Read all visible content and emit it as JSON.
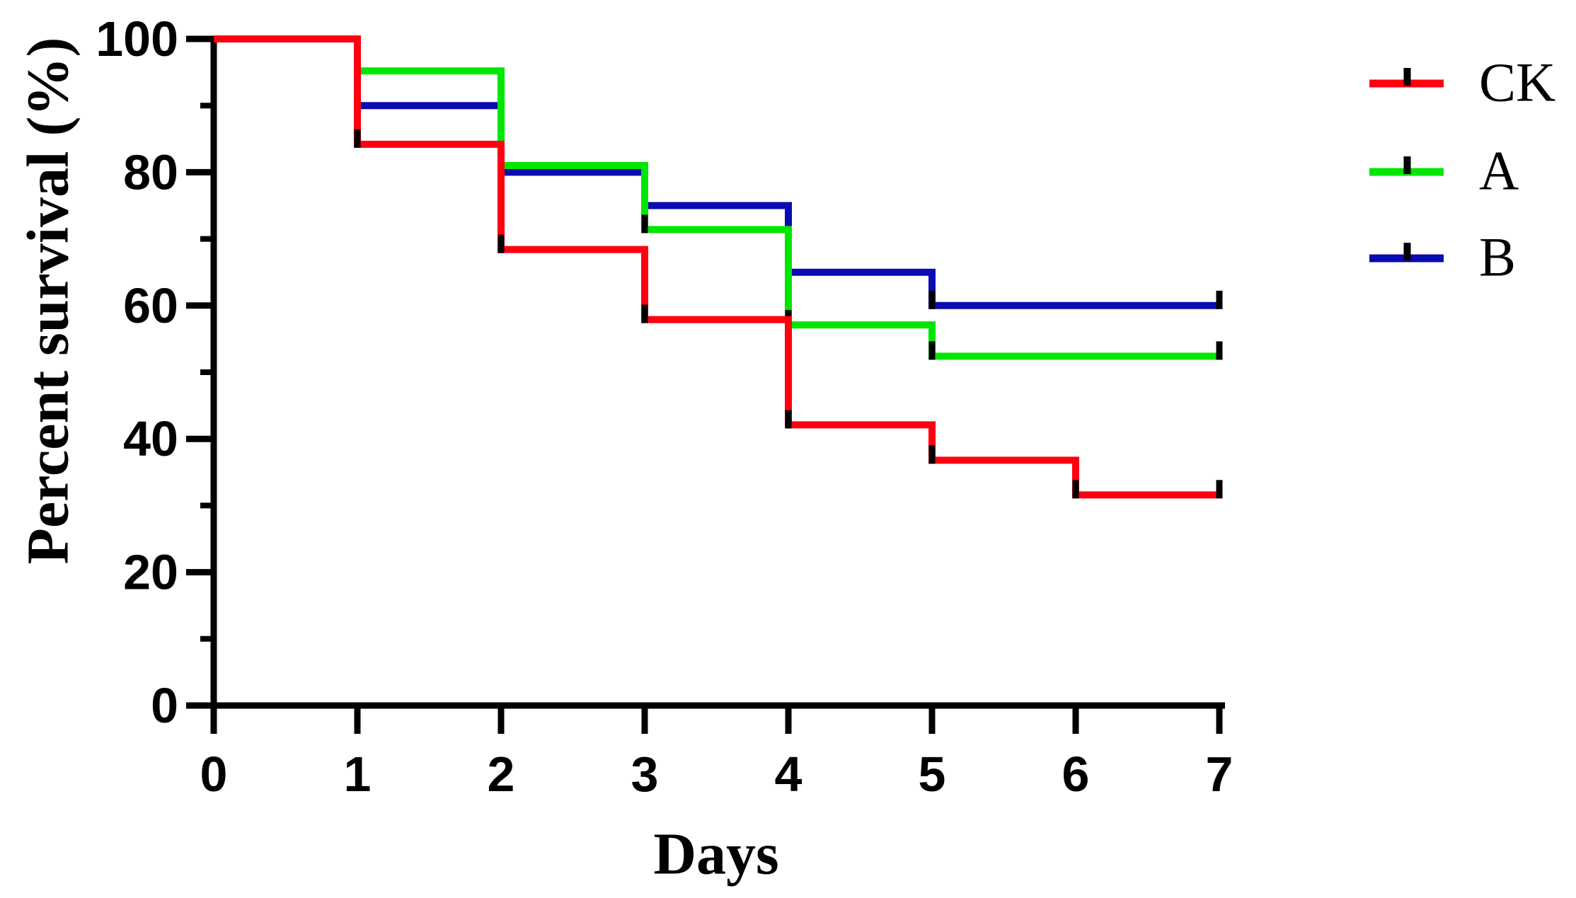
{
  "figure": {
    "background": "#ffffff",
    "axis_color": "#000000"
  },
  "chart_data": {
    "type": "line",
    "subtype": "step-survival",
    "title": "",
    "xlabel": "Days",
    "ylabel": "Percent survival (%)",
    "xlim": [
      0,
      7
    ],
    "ylim": [
      0,
      100
    ],
    "x": [
      0,
      1,
      2,
      3,
      4,
      5,
      6,
      7
    ],
    "x_tick_labels": [
      "0",
      "1",
      "2",
      "3",
      "4",
      "5",
      "6",
      "7"
    ],
    "y_major_ticks": [
      0,
      20,
      40,
      60,
      80,
      100
    ],
    "y_tick_labels": [
      "0",
      "20",
      "40",
      "60",
      "80",
      "100"
    ],
    "y_minor_ticks": [
      10,
      30,
      50,
      70,
      90
    ],
    "grid": false,
    "legend_position": "right",
    "series": [
      {
        "name": "B",
        "label": "B",
        "color": "#0B0BB2",
        "values": [
          100,
          90,
          80,
          75,
          65,
          60,
          60,
          60
        ],
        "marker_days": [
          1,
          2,
          3,
          4,
          5,
          7
        ]
      },
      {
        "name": "A",
        "label": "A",
        "color": "#00E600",
        "values": [
          100,
          95.2,
          81.0,
          71.4,
          57.1,
          52.4,
          52.4,
          52.4
        ],
        "marker_days": [
          1,
          2,
          3,
          4,
          5,
          7
        ]
      },
      {
        "name": "CK",
        "label": "CK",
        "color": "#FF0010",
        "values": [
          100,
          84.2,
          68.4,
          57.9,
          42.1,
          36.8,
          31.6,
          31.6
        ],
        "marker_days": [
          1,
          2,
          3,
          4,
          5,
          6,
          7
        ]
      }
    ],
    "legend_order": [
      "CK",
      "A",
      "B"
    ],
    "marker": {
      "color": "#000000",
      "width": 9,
      "height": 26,
      "y_offset": -8
    }
  }
}
